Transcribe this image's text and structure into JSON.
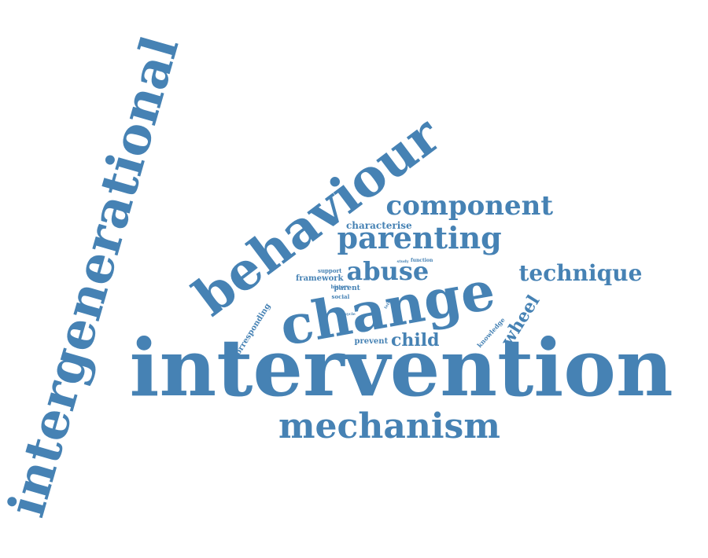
{
  "color": "#4682B4",
  "words": [
    {
      "text": "intervention"
    },
    {
      "text": "intergenerational"
    },
    {
      "text": "behaviour"
    },
    {
      "text": "change"
    },
    {
      "text": "component"
    },
    {
      "text": "parenting"
    },
    {
      "text": "mechanism"
    },
    {
      "text": "technique"
    },
    {
      "text": "abuse"
    },
    {
      "text": "child"
    },
    {
      "text": "wheel"
    },
    {
      "text": "characterise"
    },
    {
      "text": "framework"
    },
    {
      "text": "corresponding"
    },
    {
      "text": "knowledge"
    },
    {
      "text": "prevent"
    },
    {
      "text": "support"
    },
    {
      "text": "social"
    },
    {
      "text": "parent"
    },
    {
      "text": "history"
    },
    {
      "text": "function"
    },
    {
      "text": "study"
    },
    {
      "text": "sycle"
    },
    {
      "text": "tets"
    }
  ]
}
